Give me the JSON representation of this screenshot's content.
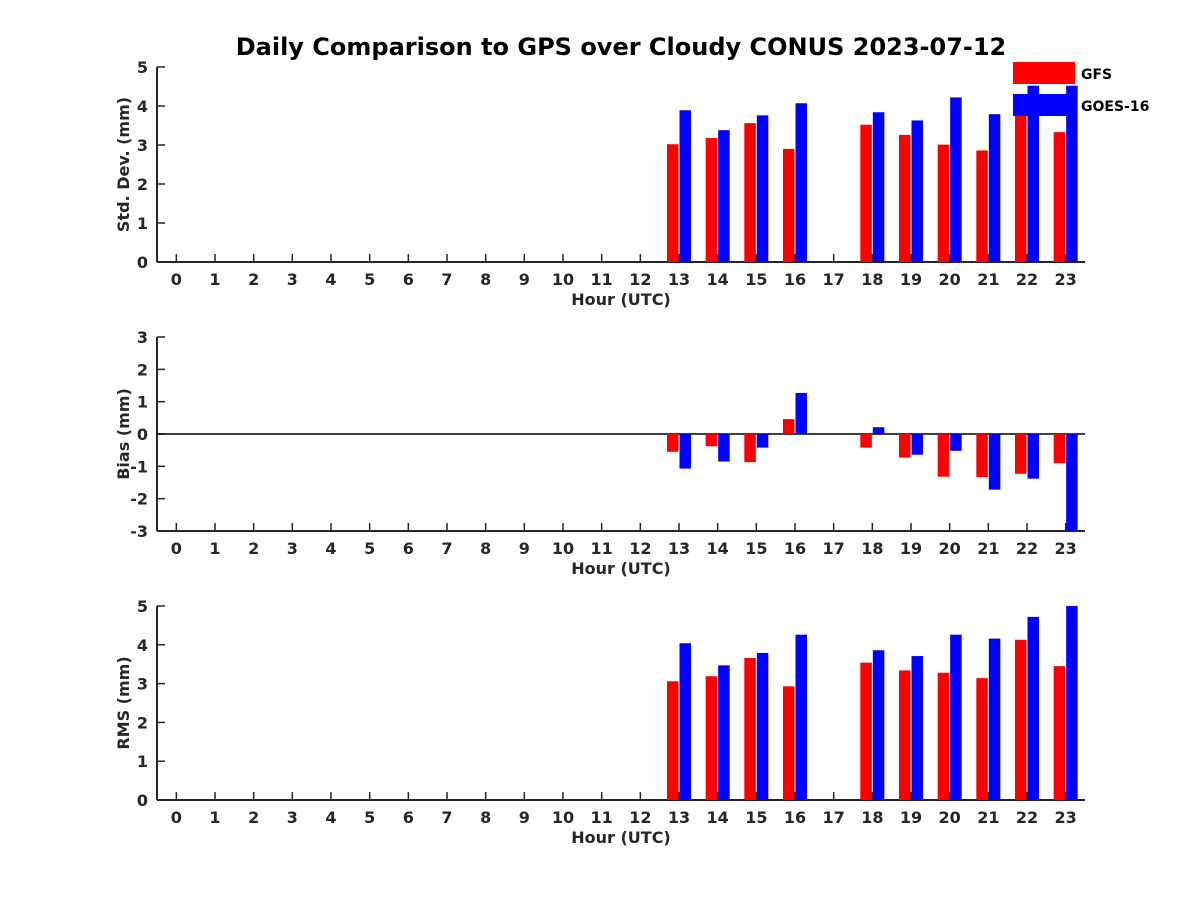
{
  "chart_data": {
    "type": "bar",
    "title": "Daily Comparison to GPS over Cloudy CONUS 2023-07-12",
    "legend": {
      "placement": "top-right",
      "entries": [
        {
          "name": "GFS",
          "color": "#ff0000"
        },
        {
          "name": "GOES-16",
          "color": "#0000ff"
        }
      ]
    },
    "categories": [
      "0",
      "1",
      "2",
      "3",
      "4",
      "5",
      "6",
      "7",
      "8",
      "9",
      "10",
      "11",
      "12",
      "13",
      "14",
      "15",
      "16",
      "17",
      "18",
      "19",
      "20",
      "21",
      "22",
      "23"
    ],
    "panels": [
      {
        "ylabel": "Std. Dev. (mm)",
        "xlabel": "Hour (UTC)",
        "ylim": [
          0,
          5
        ],
        "yticks": [
          0,
          1,
          2,
          3,
          4,
          5
        ],
        "series": [
          {
            "name": "GFS",
            "color": "#ff0000",
            "values": [
              null,
              null,
              null,
              null,
              null,
              null,
              null,
              null,
              null,
              null,
              null,
              null,
              null,
              3.02,
              3.18,
              3.56,
              2.9,
              null,
              3.52,
              3.26,
              3.01,
              2.86,
              3.94,
              3.33
            ]
          },
          {
            "name": "GOES-16",
            "color": "#0000ff",
            "values": [
              null,
              null,
              null,
              null,
              null,
              null,
              null,
              null,
              null,
              null,
              null,
              null,
              null,
              3.89,
              3.38,
              3.76,
              4.07,
              null,
              3.84,
              3.63,
              4.22,
              3.79,
              4.52,
              4.52
            ]
          }
        ]
      },
      {
        "ylabel": "Bias (mm)",
        "xlabel": "Hour (UTC)",
        "ylim": [
          -3,
          3
        ],
        "yticks": [
          -3,
          -2,
          -1,
          0,
          1,
          2,
          3
        ],
        "zero_line": true,
        "series": [
          {
            "name": "GFS",
            "color": "#ff0000",
            "values": [
              null,
              null,
              null,
              null,
              null,
              null,
              null,
              null,
              null,
              null,
              null,
              null,
              null,
              -0.55,
              -0.38,
              -0.87,
              0.46,
              null,
              -0.42,
              -0.73,
              -1.32,
              -1.33,
              -1.23,
              -0.9
            ]
          },
          {
            "name": "GOES-16",
            "color": "#0000ff",
            "values": [
              null,
              null,
              null,
              null,
              null,
              null,
              null,
              null,
              null,
              null,
              null,
              null,
              null,
              -1.07,
              -0.85,
              -0.42,
              1.27,
              null,
              0.21,
              -0.64,
              -0.52,
              -1.72,
              -1.38,
              -3.0
            ]
          }
        ]
      },
      {
        "ylabel": "RMS (mm)",
        "xlabel": "Hour (UTC)",
        "ylim": [
          0,
          5
        ],
        "yticks": [
          0,
          1,
          2,
          3,
          4,
          5
        ],
        "series": [
          {
            "name": "GFS",
            "color": "#ff0000",
            "values": [
              null,
              null,
              null,
              null,
              null,
              null,
              null,
              null,
              null,
              null,
              null,
              null,
              null,
              3.06,
              3.19,
              3.66,
              2.93,
              null,
              3.54,
              3.34,
              3.28,
              3.14,
              4.13,
              3.45
            ]
          },
          {
            "name": "GOES-16",
            "color": "#0000ff",
            "values": [
              null,
              null,
              null,
              null,
              null,
              null,
              null,
              null,
              null,
              null,
              null,
              null,
              null,
              4.04,
              3.47,
              3.79,
              4.26,
              null,
              3.86,
              3.71,
              4.26,
              4.16,
              4.72,
              5.0
            ]
          }
        ]
      }
    ]
  }
}
